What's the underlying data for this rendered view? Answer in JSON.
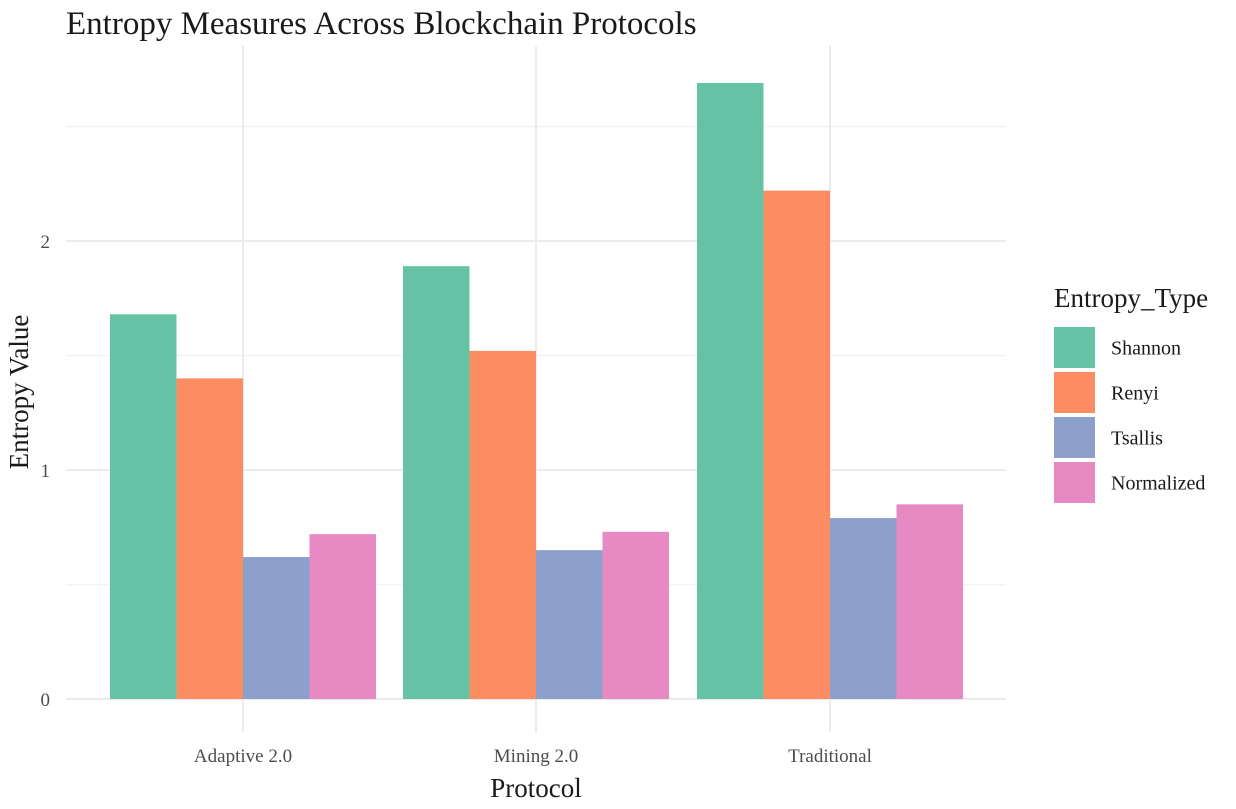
{
  "chart_data": {
    "type": "bar",
    "title": "Entropy Measures Across Blockchain Protocols",
    "xlabel": "Protocol",
    "ylabel": "Entropy Value",
    "categories": [
      "Adaptive 2.0",
      "Mining 2.0",
      "Traditional"
    ],
    "series": [
      {
        "name": "Shannon",
        "color": "#66c2a5",
        "values": [
          1.68,
          1.89,
          2.69
        ]
      },
      {
        "name": "Renyi",
        "color": "#fc8d62",
        "values": [
          1.4,
          1.52,
          2.22
        ]
      },
      {
        "name": "Tsallis",
        "color": "#8da0cb",
        "values": [
          0.62,
          0.65,
          0.79
        ]
      },
      {
        "name": "Normalized",
        "color": "#e78ac3",
        "values": [
          0.72,
          0.73,
          0.85
        ]
      }
    ],
    "ylim": [
      0,
      2.85
    ],
    "yticks": [
      0,
      1,
      2
    ],
    "ytick_labels": [
      "0",
      "1",
      "2"
    ],
    "grid": true,
    "legend": {
      "title": "Entropy_Type",
      "position": "right"
    }
  }
}
